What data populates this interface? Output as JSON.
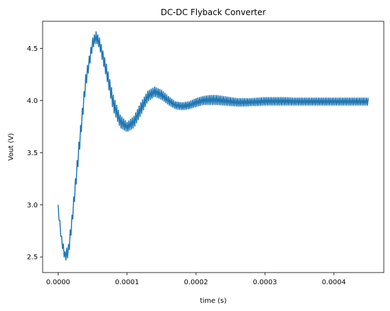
{
  "chart_data": {
    "type": "line",
    "title": "DC-DC Flyback Converter",
    "xlabel": "time (s)",
    "ylabel": "Vout (V)",
    "xlim": [
      -2.25e-05,
      0.0004725
    ],
    "ylim": [
      2.35,
      4.76
    ],
    "grid": false,
    "line_color": "#1f77b4",
    "x_ticks": [
      {
        "value": 0.0,
        "label": "0.0000"
      },
      {
        "value": 0.0001,
        "label": "0.0001"
      },
      {
        "value": 0.0002,
        "label": "0.0002"
      },
      {
        "value": 0.0003,
        "label": "0.0003"
      },
      {
        "value": 0.0004,
        "label": "0.0004"
      }
    ],
    "y_ticks": [
      {
        "value": 2.5,
        "label": "2.5"
      },
      {
        "value": 3.0,
        "label": "3.0"
      },
      {
        "value": 3.5,
        "label": "3.5"
      },
      {
        "value": 4.0,
        "label": "4.0"
      },
      {
        "value": 4.5,
        "label": "4.5"
      }
    ],
    "series": [
      {
        "name": "",
        "upper": {
          "x": [
            0.0,
            5e-06,
            1e-05,
            1.5e-05,
            2e-05,
            3e-05,
            4e-05,
            5e-05,
            5.5e-05,
            6e-05,
            7e-05,
            8e-05,
            9e-05,
            0.0001,
            0.00011,
            0.00012,
            0.00013,
            0.00014,
            0.00015,
            0.00016,
            0.00017,
            0.00018,
            0.00019,
            0.0002,
            0.00021,
            0.00022,
            0.00023,
            0.00024,
            0.00025,
            0.00026,
            0.00027,
            0.00028,
            0.00029,
            0.0003,
            0.00031,
            0.00032,
            0.00033,
            0.00034,
            0.00035,
            0.00036,
            0.00037,
            0.00038,
            0.00039,
            0.0004,
            0.00041,
            0.00042,
            0.00043,
            0.00044,
            0.00045
          ],
          "y": [
            3.0,
            2.7,
            2.55,
            2.62,
            2.9,
            3.6,
            4.25,
            4.6,
            4.66,
            4.6,
            4.35,
            4.05,
            3.86,
            3.79,
            3.85,
            3.98,
            4.09,
            4.13,
            4.1,
            4.04,
            3.99,
            3.98,
            3.99,
            4.02,
            4.04,
            4.05,
            4.05,
            4.04,
            4.03,
            4.02,
            4.02,
            4.02,
            4.025,
            4.03,
            4.03,
            4.03,
            4.03,
            4.025,
            4.025,
            4.025,
            4.025,
            4.025,
            4.025,
            4.025,
            4.025,
            4.025,
            4.025,
            4.025,
            4.025
          ]
        },
        "lower": {
          "x": [
            0.0,
            5e-06,
            1e-05,
            1.5e-05,
            2e-05,
            3e-05,
            4e-05,
            5e-05,
            5.5e-05,
            6e-05,
            7e-05,
            8e-05,
            9e-05,
            0.0001,
            0.00011,
            0.00012,
            0.00013,
            0.00014,
            0.00015,
            0.00016,
            0.00017,
            0.00018,
            0.00019,
            0.0002,
            0.00021,
            0.00022,
            0.00023,
            0.00024,
            0.00025,
            0.00026,
            0.00027,
            0.00028,
            0.00029,
            0.0003,
            0.00031,
            0.00032,
            0.00033,
            0.00034,
            0.00035,
            0.00036,
            0.00037,
            0.00038,
            0.00039,
            0.0004,
            0.00041,
            0.00042,
            0.00043,
            0.00044,
            0.00045
          ],
          "y": [
            2.93,
            2.62,
            2.46,
            2.5,
            2.78,
            3.45,
            4.12,
            4.5,
            4.56,
            4.5,
            4.22,
            3.9,
            3.74,
            3.7,
            3.74,
            3.86,
            3.99,
            4.04,
            4.01,
            3.96,
            3.92,
            3.91,
            3.92,
            3.94,
            3.96,
            3.96,
            3.96,
            3.955,
            3.95,
            3.945,
            3.945,
            3.95,
            3.95,
            3.955,
            3.955,
            3.955,
            3.955,
            3.955,
            3.955,
            3.955,
            3.955,
            3.955,
            3.955,
            3.955,
            3.955,
            3.955,
            3.955,
            3.955,
            3.955
          ]
        }
      }
    ]
  }
}
